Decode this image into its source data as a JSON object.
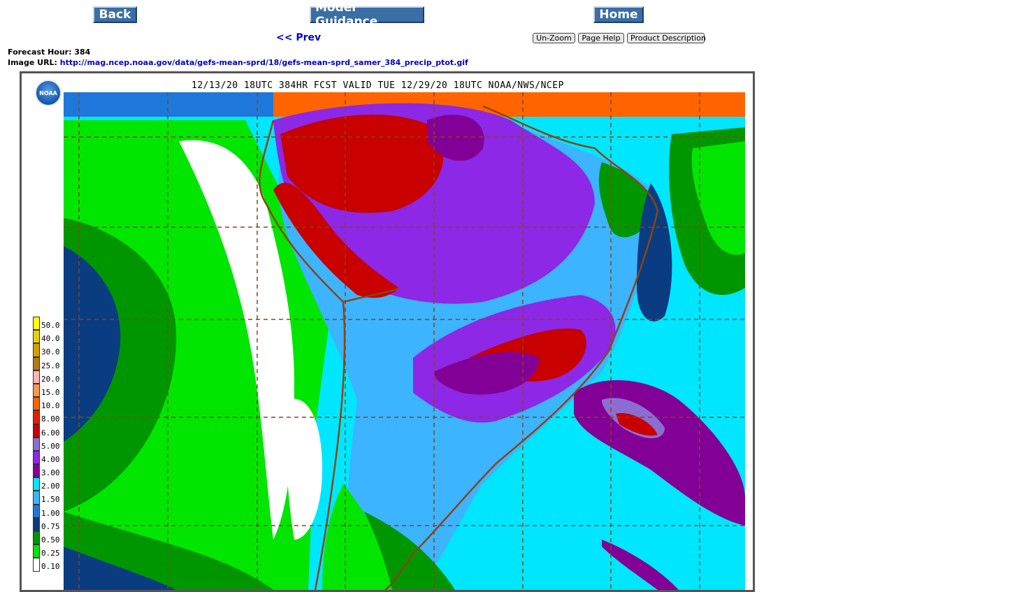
{
  "nav": {
    "back": "Back",
    "model_guidance": "Model Guidance",
    "home": "Home",
    "prev": "<< Prev"
  },
  "controls": {
    "unzoom": "Un-Zoom",
    "page_help": "Page Help",
    "product_description": "Product Description"
  },
  "info": {
    "forecast_hour_label": "Forecast Hour:",
    "forecast_hour": "384",
    "image_url_label": "Image URL:",
    "image_url": "http://mag.ncep.noaa.gov/data/gefs-mean-sprd/18/gefs-mean-sprd_samer_384_precip_ptot.gif"
  },
  "map": {
    "title": "12/13/20 18UTC 384HR FCST VALID TUE 12/29/20 18UTC NOAA/NWS/NCEP",
    "logo_text": "NOAA",
    "legend": [
      {
        "label": "50.0",
        "color": "#ffff00"
      },
      {
        "label": "40.0",
        "color": "#e6d200"
      },
      {
        "label": "30.0",
        "color": "#d2a000"
      },
      {
        "label": "25.0",
        "color": "#b47814"
      },
      {
        "label": "20.0",
        "color": "#ffb4b4"
      },
      {
        "label": "15.0",
        "color": "#ff9650"
      },
      {
        "label": "10.0",
        "color": "#ff6400"
      },
      {
        "label": "8.00",
        "color": "#e61e00"
      },
      {
        "label": "6.00",
        "color": "#c80000"
      },
      {
        "label": "5.00",
        "color": "#8c6ed2"
      },
      {
        "label": "4.00",
        "color": "#8c28e6"
      },
      {
        "label": "3.00",
        "color": "#820096"
      },
      {
        "label": "2.00",
        "color": "#00e6ff"
      },
      {
        "label": "1.50",
        "color": "#3cb4ff"
      },
      {
        "label": "1.00",
        "color": "#1e78dc"
      },
      {
        "label": "0.75",
        "color": "#0a3c82"
      },
      {
        "label": "0.50",
        "color": "#009600"
      },
      {
        "label": "0.25",
        "color": "#00e600"
      },
      {
        "label": "0.10",
        "color": "#ffffff"
      }
    ]
  }
}
